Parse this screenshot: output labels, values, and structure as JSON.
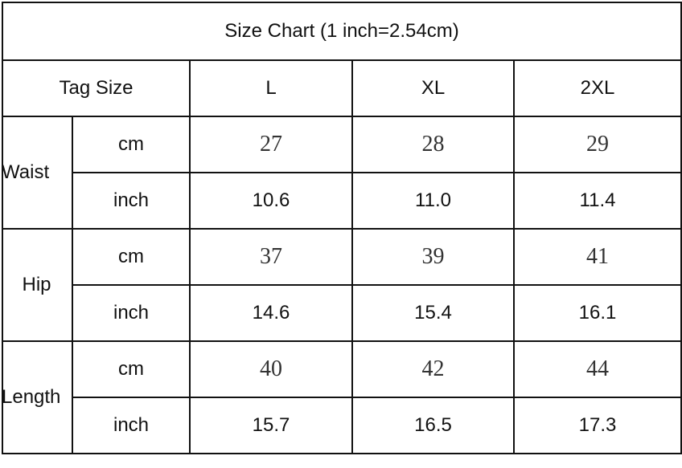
{
  "title": "Size Chart (1 inch=2.54cm)",
  "header": {
    "label": "Tag Size",
    "sizes": [
      "L",
      "XL",
      "2XL"
    ]
  },
  "rows": [
    {
      "group": "Waist",
      "cm_label": "cm",
      "cm": [
        "27",
        "28",
        "29"
      ],
      "inch_label": "inch",
      "inch": [
        "10.6",
        "11.0",
        "11.4"
      ]
    },
    {
      "group": "Hip",
      "cm_label": "cm",
      "cm": [
        "37",
        "39",
        "41"
      ],
      "inch_label": "inch",
      "inch": [
        "14.6",
        "15.4",
        "16.1"
      ]
    },
    {
      "group": "Length",
      "cm_label": "cm",
      "cm": [
        "40",
        "42",
        "44"
      ],
      "inch_label": "inch",
      "inch": [
        "15.7",
        "16.5",
        "17.3"
      ]
    }
  ]
}
